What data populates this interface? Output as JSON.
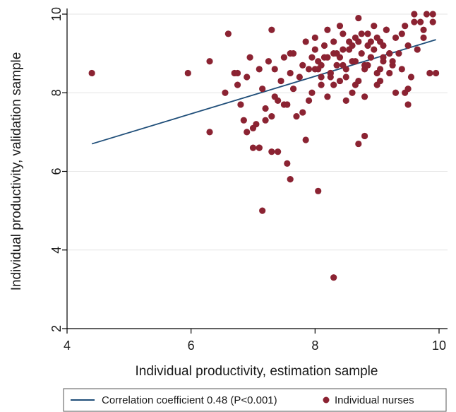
{
  "chart_data": {
    "type": "scatter",
    "xlabel": "Individual productivity, estimation sample",
    "ylabel": "Individual productivity, validation sample",
    "xlim": [
      4,
      10
    ],
    "ylim": [
      2,
      10
    ],
    "x_ticks": [
      "4",
      "6",
      "8",
      "10"
    ],
    "y_ticks": [
      "2",
      "4",
      "6",
      "8",
      "10"
    ],
    "grid": "horizontal",
    "legend_position": "bottom",
    "colors": {
      "points": "#8b2332",
      "line": "#1f4e79",
      "grid": "#e6e6e6",
      "axis": "#000000"
    },
    "series": [
      {
        "kind": "line",
        "name": "Correlation coefficient 0.48 (P<0.001)",
        "x": [
          4.4,
          9.95
        ],
        "y": [
          6.7,
          9.35
        ]
      },
      {
        "kind": "scatter",
        "name": "Individual nurses",
        "x": [
          4.4,
          5.95,
          6.3,
          6.55,
          6.6,
          6.3,
          6.7,
          6.75,
          6.8,
          6.85,
          6.9,
          6.9,
          6.95,
          7.0,
          7.05,
          7.1,
          7.15,
          7.2,
          7.25,
          7.3,
          7.3,
          7.35,
          7.4,
          7.45,
          7.5,
          7.55,
          7.6,
          7.65,
          7.7,
          7.75,
          7.8,
          7.85,
          7.9,
          7.95,
          8.0,
          8.05,
          8.1,
          8.15,
          8.2,
          8.25,
          8.3,
          8.35,
          8.4,
          8.45,
          8.5,
          8.55,
          8.6,
          8.65,
          8.7,
          8.75,
          8.8,
          8.85,
          8.9,
          8.95,
          9.0,
          9.05,
          9.1,
          9.15,
          9.2,
          9.25,
          9.3,
          9.35,
          9.4,
          9.45,
          9.5,
          9.55,
          9.6,
          9.65,
          9.7,
          9.75,
          9.8,
          9.85,
          9.9,
          9.95,
          6.75,
          7.0,
          7.1,
          7.2,
          7.3,
          7.35,
          7.5,
          7.6,
          7.65,
          7.8,
          7.9,
          7.95,
          8.0,
          8.1,
          8.2,
          8.3,
          8.4,
          8.5,
          8.6,
          8.7,
          8.8,
          8.9,
          9.0,
          9.1,
          9.2,
          9.3,
          9.4,
          9.5,
          8.05,
          8.15,
          8.25,
          8.35,
          8.45,
          8.55,
          8.65,
          8.75,
          8.85,
          8.95,
          9.05,
          9.15,
          9.25,
          8.0,
          8.2,
          8.4,
          8.6,
          8.8,
          9.0,
          9.2,
          8.1,
          8.3,
          8.5,
          8.7,
          8.9,
          9.1,
          8.25,
          8.45,
          8.65,
          8.85,
          9.05,
          7.55,
          7.6,
          7.15,
          8.05,
          7.1,
          8.3,
          8.7,
          8.8,
          9.45,
          9.5,
          9.6,
          9.75,
          9.9,
          7.85,
          7.4
        ],
        "y": [
          8.5,
          8.5,
          7.0,
          8.0,
          9.5,
          8.8,
          8.5,
          8.2,
          7.7,
          7.3,
          8.4,
          7.0,
          8.9,
          6.6,
          7.2,
          8.6,
          8.1,
          7.6,
          8.8,
          9.6,
          7.4,
          8.6,
          7.8,
          8.3,
          8.9,
          7.7,
          8.5,
          9.0,
          7.4,
          8.4,
          8.7,
          9.3,
          7.8,
          8.9,
          9.1,
          8.6,
          8.2,
          8.9,
          9.6,
          8.5,
          9.3,
          8.7,
          8.9,
          9.5,
          8.6,
          9.1,
          8.8,
          9.4,
          8.3,
          9.0,
          8.6,
          9.2,
          8.9,
          9.7,
          8.5,
          9.3,
          8.8,
          9.6,
          9.0,
          8.7,
          9.4,
          9.0,
          8.6,
          9.7,
          9.2,
          8.4,
          9.8,
          9.1,
          9.8,
          9.6,
          10.0,
          8.5,
          10.0,
          8.5,
          8.5,
          7.1,
          6.6,
          7.3,
          6.5,
          7.9,
          7.7,
          9.0,
          8.1,
          7.5,
          8.6,
          8.0,
          9.4,
          8.4,
          7.9,
          8.2,
          9.7,
          7.8,
          8.0,
          9.9,
          7.9,
          9.3,
          8.2,
          8.9,
          8.5,
          8.0,
          9.5,
          8.1,
          8.8,
          9.2,
          8.4,
          9.0,
          8.7,
          9.3,
          8.2,
          9.5,
          8.7,
          9.1,
          8.3,
          9.6,
          8.8,
          8.6,
          8.9,
          8.3,
          9.2,
          8.7,
          9.4,
          9.0,
          8.7,
          9.0,
          8.4,
          9.3,
          8.9,
          9.2,
          8.5,
          9.1,
          8.8,
          9.5,
          8.6,
          6.2,
          5.8,
          5.0,
          5.5,
          6.6,
          3.3,
          6.7,
          6.9,
          8.0,
          7.7,
          10.0,
          9.4,
          9.8,
          6.8,
          6.5
        ]
      }
    ]
  }
}
